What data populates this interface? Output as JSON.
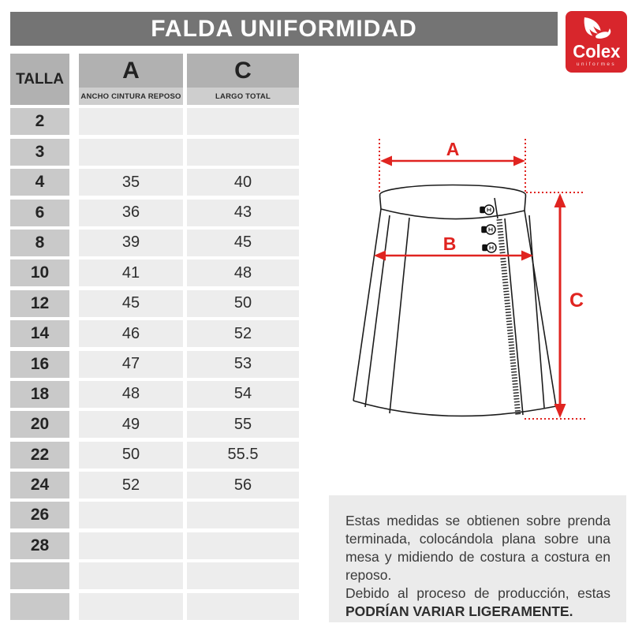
{
  "header": {
    "title": "FALDA UNIFORMIDAD"
  },
  "logo": {
    "brand": "Colex",
    "tagline": "uniformes"
  },
  "table": {
    "size_col_label": "TALLA",
    "columns": [
      {
        "letter": "A",
        "label": "ANCHO CINTURA REPOSO"
      },
      {
        "letter": "C",
        "label": "LARGO TOTAL"
      }
    ],
    "rows": [
      {
        "talla": "2",
        "a": "",
        "c": ""
      },
      {
        "talla": "3",
        "a": "",
        "c": ""
      },
      {
        "talla": "4",
        "a": "35",
        "c": "40"
      },
      {
        "talla": "6",
        "a": "36",
        "c": "43"
      },
      {
        "talla": "8",
        "a": "39",
        "c": "45"
      },
      {
        "talla": "10",
        "a": "41",
        "c": "48"
      },
      {
        "talla": "12",
        "a": "45",
        "c": "50"
      },
      {
        "talla": "14",
        "a": "46",
        "c": "52"
      },
      {
        "talla": "16",
        "a": "47",
        "c": "53"
      },
      {
        "talla": "18",
        "a": "48",
        "c": "54"
      },
      {
        "talla": "20",
        "a": "49",
        "c": "55"
      },
      {
        "talla": "22",
        "a": "50",
        "c": "55.5"
      },
      {
        "talla": "24",
        "a": "52",
        "c": "56"
      },
      {
        "talla": "26",
        "a": "",
        "c": ""
      },
      {
        "talla": "28",
        "a": "",
        "c": ""
      },
      {
        "talla": "",
        "a": "",
        "c": ""
      },
      {
        "talla": "",
        "a": "",
        "c": ""
      }
    ]
  },
  "diagram": {
    "label_a": "A",
    "label_b": "B",
    "label_c": "C"
  },
  "note": {
    "p1": "Estas medidas se obtienen sobre prenda terminada, colocándola plana sobre una mesa y midiendo de costura a costura en reposo.",
    "p2_normal": "Debido al proceso de producción, estas ",
    "p2_bold": "PODRÍAN VARIAR LIGERAMENTE."
  },
  "colors": {
    "accent_red": "#E02420",
    "logo_red": "#D8262C",
    "title_bar_gray": "#747474",
    "header_cell_gray": "#B1B1B1",
    "label_cell_gray": "#C9C9C9",
    "data_cell_gray": "#EDEDED",
    "note_bg_gray": "#EBEBEB"
  }
}
